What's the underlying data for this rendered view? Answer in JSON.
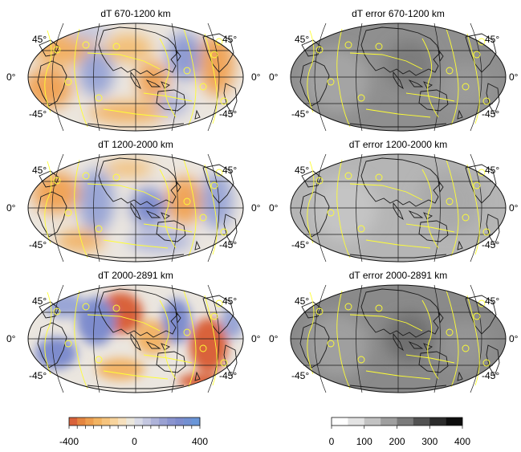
{
  "panels": [
    {
      "id": "dt-670-1200",
      "title": "dT 670-1200 km",
      "kind": "dT",
      "lat_labels": {
        "north_left": "45°",
        "north_right": "45°",
        "equator_left": "0°",
        "equator_right": "0°",
        "south_left": "-45°",
        "south_right": "-45°"
      }
    },
    {
      "id": "dterr-670-1200",
      "title": "dT error 670-1200 km",
      "kind": "error",
      "lat_labels": {
        "north_left": "45°",
        "north_right": "45°",
        "equator_left": "0°",
        "equator_right": "0°",
        "south_left": "-45°",
        "south_right": "-45°"
      }
    },
    {
      "id": "dt-1200-2000",
      "title": "dT 1200-2000 km",
      "kind": "dT",
      "lat_labels": {
        "north_left": "45°",
        "north_right": "45°",
        "equator_left": "0°",
        "equator_right": "0°",
        "south_left": "-45°",
        "south_right": "-45°"
      }
    },
    {
      "id": "dterr-1200-2000",
      "title": "dT error 1200-2000 km",
      "kind": "error",
      "lat_labels": {
        "north_left": "45°",
        "north_right": "45°",
        "equator_left": "0°",
        "equator_right": "0°",
        "south_left": "-45°",
        "south_right": "-45°"
      }
    },
    {
      "id": "dt-2000-2891",
      "title": "dT 2000-2891 km",
      "kind": "dT",
      "lat_labels": {
        "north_left": "45°",
        "north_right": "45°",
        "equator_left": "0°",
        "equator_right": "0°",
        "south_left": "-45°",
        "south_right": "-45°"
      }
    },
    {
      "id": "dterr-2000-2891",
      "title": "dT error 2000-2891 km",
      "kind": "error",
      "lat_labels": {
        "north_left": "45°",
        "north_right": "45°",
        "equator_left": "0°",
        "equator_right": "0°",
        "south_left": "-45°",
        "south_right": "-45°"
      }
    }
  ],
  "colorbars": {
    "dT": {
      "ticks": [
        "-400",
        "0",
        "400"
      ],
      "min": -400,
      "max": 400,
      "colors": [
        "#d9623a",
        "#e48540",
        "#ed9e4f",
        "#f2b463",
        "#f6c47e",
        "#f8d49d",
        "#f6e0bd",
        "#ebe7dc",
        "#d9dbe7",
        "#c4c7e0",
        "#aeb3d9",
        "#9aa1d2",
        "#8a94cf",
        "#7e8ccd",
        "#7390d2",
        "#6a96d8"
      ]
    },
    "error": {
      "ticks": [
        "0",
        "100",
        "200",
        "300",
        "400"
      ],
      "min": 0,
      "max": 400,
      "colors": [
        "#ffffff",
        "#e3e3e3",
        "#c2c2c2",
        "#9f9f9f",
        "#7a7a7a",
        "#525252",
        "#2b2b2b",
        "#0d0d0d"
      ]
    }
  },
  "palette": {
    "plate_boundaries": "#ffff33",
    "coastlines": "#1a1a1a",
    "graticule": "#1a1a1a",
    "error_background": "#8f8f8f",
    "dT_background": "#ebe6df"
  }
}
